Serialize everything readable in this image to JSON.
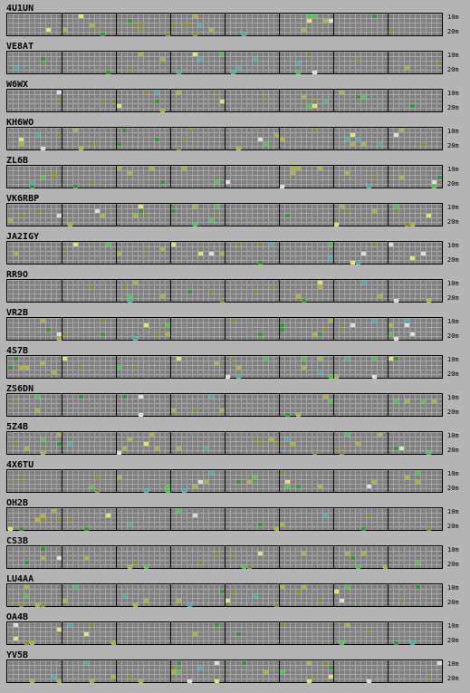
{
  "band_labels": {
    "top": "10m",
    "bottom": "20m"
  },
  "colors": {
    "background": "#b4b4b4",
    "strip": "#808080",
    "grid": "#a6a6a6",
    "hour_divider": "#000000",
    "signal_yellow": "#b4b428",
    "signal_bright_yellow": "#e6e650",
    "signal_green": "#28a028",
    "signal_bright_green": "#3cd23c",
    "signal_cyan": "#3cb4b4",
    "signal_white": "#dcdcdc",
    "signal_olive": "#8c8c28"
  },
  "beacons": [
    {
      "callsign": "4U1UN"
    },
    {
      "callsign": "VE8AT"
    },
    {
      "callsign": "W6WX"
    },
    {
      "callsign": "KH6WO"
    },
    {
      "callsign": "ZL6B"
    },
    {
      "callsign": "VK6RBP"
    },
    {
      "callsign": "JA2IGY"
    },
    {
      "callsign": "RR9O"
    },
    {
      "callsign": "VR2B"
    },
    {
      "callsign": "4S7B"
    },
    {
      "callsign": "ZS6DN"
    },
    {
      "callsign": "5Z4B"
    },
    {
      "callsign": "4X6TU"
    },
    {
      "callsign": "OH2B"
    },
    {
      "callsign": "CS3B"
    },
    {
      "callsign": "LU4AA"
    },
    {
      "callsign": "OA4B"
    },
    {
      "callsign": "YV5B"
    }
  ]
}
